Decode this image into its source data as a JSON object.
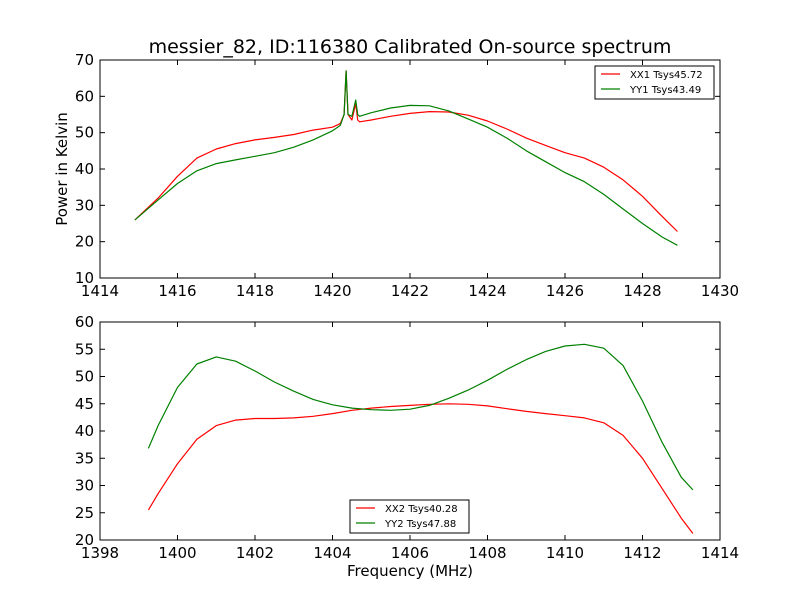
{
  "chart_data": [
    {
      "type": "line",
      "title": "messier_82, ID:116380 Calibrated On-source spectrum",
      "xlabel": "",
      "ylabel": "Power in Kelvin",
      "xlim": [
        1414,
        1430
      ],
      "ylim": [
        10,
        70
      ],
      "xticks": [
        1414,
        1416,
        1418,
        1420,
        1422,
        1424,
        1426,
        1428,
        1430
      ],
      "yticks": [
        10,
        20,
        30,
        40,
        50,
        60,
        70
      ],
      "legend_position": "top-right",
      "series": [
        {
          "name": "XX1 Tsys45.72",
          "color": "#ff0000",
          "x": [
            1414.9,
            1415.5,
            1416.0,
            1416.5,
            1417.0,
            1417.5,
            1418.0,
            1418.5,
            1419.0,
            1419.5,
            1420.0,
            1420.2,
            1420.3,
            1420.35,
            1420.4,
            1420.5,
            1420.6,
            1420.65,
            1420.7,
            1421.0,
            1421.5,
            1422.0,
            1422.5,
            1423.0,
            1423.5,
            1424.0,
            1424.5,
            1425.0,
            1425.5,
            1426.0,
            1426.5,
            1427.0,
            1427.5,
            1428.0,
            1428.5,
            1428.9
          ],
          "y": [
            26,
            32,
            38,
            43,
            45.5,
            47,
            48,
            48.7,
            49.5,
            50.7,
            51.5,
            52.5,
            55,
            67,
            55,
            53.5,
            58,
            53.5,
            53,
            53.5,
            54.5,
            55.3,
            55.8,
            55.7,
            54.8,
            53.2,
            51,
            48.5,
            46.5,
            44.5,
            43,
            40.5,
            37,
            32.5,
            27,
            22.8
          ]
        },
        {
          "name": "YY1 Tsys43.49",
          "color": "#008000",
          "x": [
            1414.9,
            1415.5,
            1416.0,
            1416.5,
            1417.0,
            1417.5,
            1418.0,
            1418.5,
            1419.0,
            1419.5,
            1420.0,
            1420.2,
            1420.3,
            1420.35,
            1420.4,
            1420.5,
            1420.6,
            1420.65,
            1420.7,
            1421.0,
            1421.5,
            1422.0,
            1422.5,
            1423.0,
            1423.5,
            1424.0,
            1424.5,
            1425.0,
            1425.5,
            1426.0,
            1426.5,
            1427.0,
            1427.5,
            1428.0,
            1428.5,
            1428.9
          ],
          "y": [
            26,
            31.5,
            36,
            39.5,
            41.5,
            42.5,
            43.5,
            44.5,
            46,
            48,
            50.5,
            52,
            55,
            67,
            55,
            54.5,
            59,
            55,
            54.5,
            55.5,
            56.8,
            57.5,
            57.4,
            56,
            53.8,
            51.5,
            48.5,
            45,
            42,
            39,
            36.5,
            33,
            29,
            25,
            21.3,
            19
          ]
        }
      ]
    },
    {
      "type": "line",
      "title": "",
      "xlabel": "Frequency (MHz)",
      "ylabel": "",
      "xlim": [
        1398,
        1414
      ],
      "ylim": [
        20,
        60
      ],
      "xticks": [
        1398,
        1400,
        1402,
        1404,
        1406,
        1408,
        1410,
        1412,
        1414
      ],
      "yticks": [
        20,
        25,
        30,
        35,
        40,
        45,
        50,
        55,
        60
      ],
      "legend_position": "bottom-center",
      "series": [
        {
          "name": "XX2 Tsys40.28",
          "color": "#ff0000",
          "x": [
            1399.25,
            1399.5,
            1400.0,
            1400.5,
            1401.0,
            1401.5,
            1402.0,
            1402.5,
            1403.0,
            1403.5,
            1404.0,
            1404.5,
            1405.0,
            1405.5,
            1406.0,
            1406.5,
            1407.0,
            1407.5,
            1408.0,
            1408.5,
            1409.0,
            1409.5,
            1410.0,
            1410.5,
            1411.0,
            1411.5,
            1412.0,
            1412.5,
            1413.0,
            1413.3
          ],
          "y": [
            25.5,
            28.5,
            34,
            38.5,
            41,
            42,
            42.3,
            42.3,
            42.4,
            42.7,
            43.2,
            43.8,
            44.2,
            44.5,
            44.7,
            44.9,
            45,
            44.9,
            44.6,
            44.1,
            43.6,
            43.2,
            42.8,
            42.4,
            41.5,
            39.2,
            35,
            29.5,
            24,
            21.2
          ]
        },
        {
          "name": "YY2 Tsys47.88",
          "color": "#008000",
          "x": [
            1399.25,
            1399.5,
            1400.0,
            1400.5,
            1401.0,
            1401.5,
            1402.0,
            1402.5,
            1403.0,
            1403.5,
            1404.0,
            1404.5,
            1405.0,
            1405.5,
            1406.0,
            1406.5,
            1407.0,
            1407.5,
            1408.0,
            1408.5,
            1409.0,
            1409.5,
            1410.0,
            1410.5,
            1411.0,
            1411.5,
            1412.0,
            1412.5,
            1413.0,
            1413.3
          ],
          "y": [
            36.8,
            41,
            48,
            52.3,
            53.6,
            52.8,
            51,
            49,
            47.3,
            45.8,
            44.8,
            44.2,
            43.9,
            43.8,
            44,
            44.7,
            46,
            47.5,
            49.3,
            51.3,
            53.1,
            54.6,
            55.6,
            55.9,
            55.2,
            52,
            45.5,
            38,
            31.5,
            29.2
          ]
        }
      ]
    }
  ]
}
